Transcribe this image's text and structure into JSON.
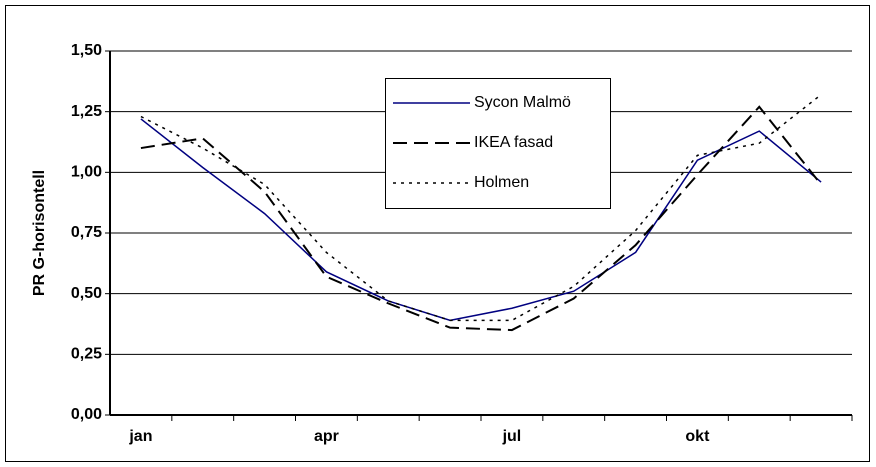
{
  "chart_data": {
    "type": "line",
    "y_label": "PR G-horisontell",
    "categories": [
      "jan",
      null,
      null,
      "apr",
      null,
      null,
      "jul",
      null,
      null,
      "okt",
      null,
      null
    ],
    "series": [
      {
        "name": "Sycon Malmö",
        "color": "#000080",
        "dash": "solid",
        "values": [
          1.22,
          1.02,
          0.83,
          0.59,
          0.47,
          0.39,
          0.44,
          0.51,
          0.67,
          1.05,
          1.17,
          0.96
        ]
      },
      {
        "name": "IKEA fasad",
        "color": "#000000",
        "dash": "dashed",
        "values": [
          1.1,
          1.14,
          0.92,
          0.57,
          0.46,
          0.36,
          0.35,
          0.48,
          0.7,
          0.99,
          1.27,
          0.95
        ]
      },
      {
        "name": "Holmen",
        "color": "#000000",
        "dash": "dotted",
        "values": [
          1.23,
          1.1,
          0.95,
          0.67,
          0.47,
          0.39,
          0.39,
          0.53,
          0.76,
          1.07,
          1.12,
          1.32
        ]
      }
    ],
    "ylim": [
      0,
      1.5
    ],
    "yticks": [
      {
        "value": 0,
        "label": "0,00"
      },
      {
        "value": 0.25,
        "label": "0,25"
      },
      {
        "value": 0.5,
        "label": "0,50"
      },
      {
        "value": 0.75,
        "label": "0,75"
      },
      {
        "value": 1,
        "label": "1,00"
      },
      {
        "value": 1.25,
        "label": "1,25"
      },
      {
        "value": 1.5,
        "label": "1,50"
      }
    ],
    "grid": true
  }
}
